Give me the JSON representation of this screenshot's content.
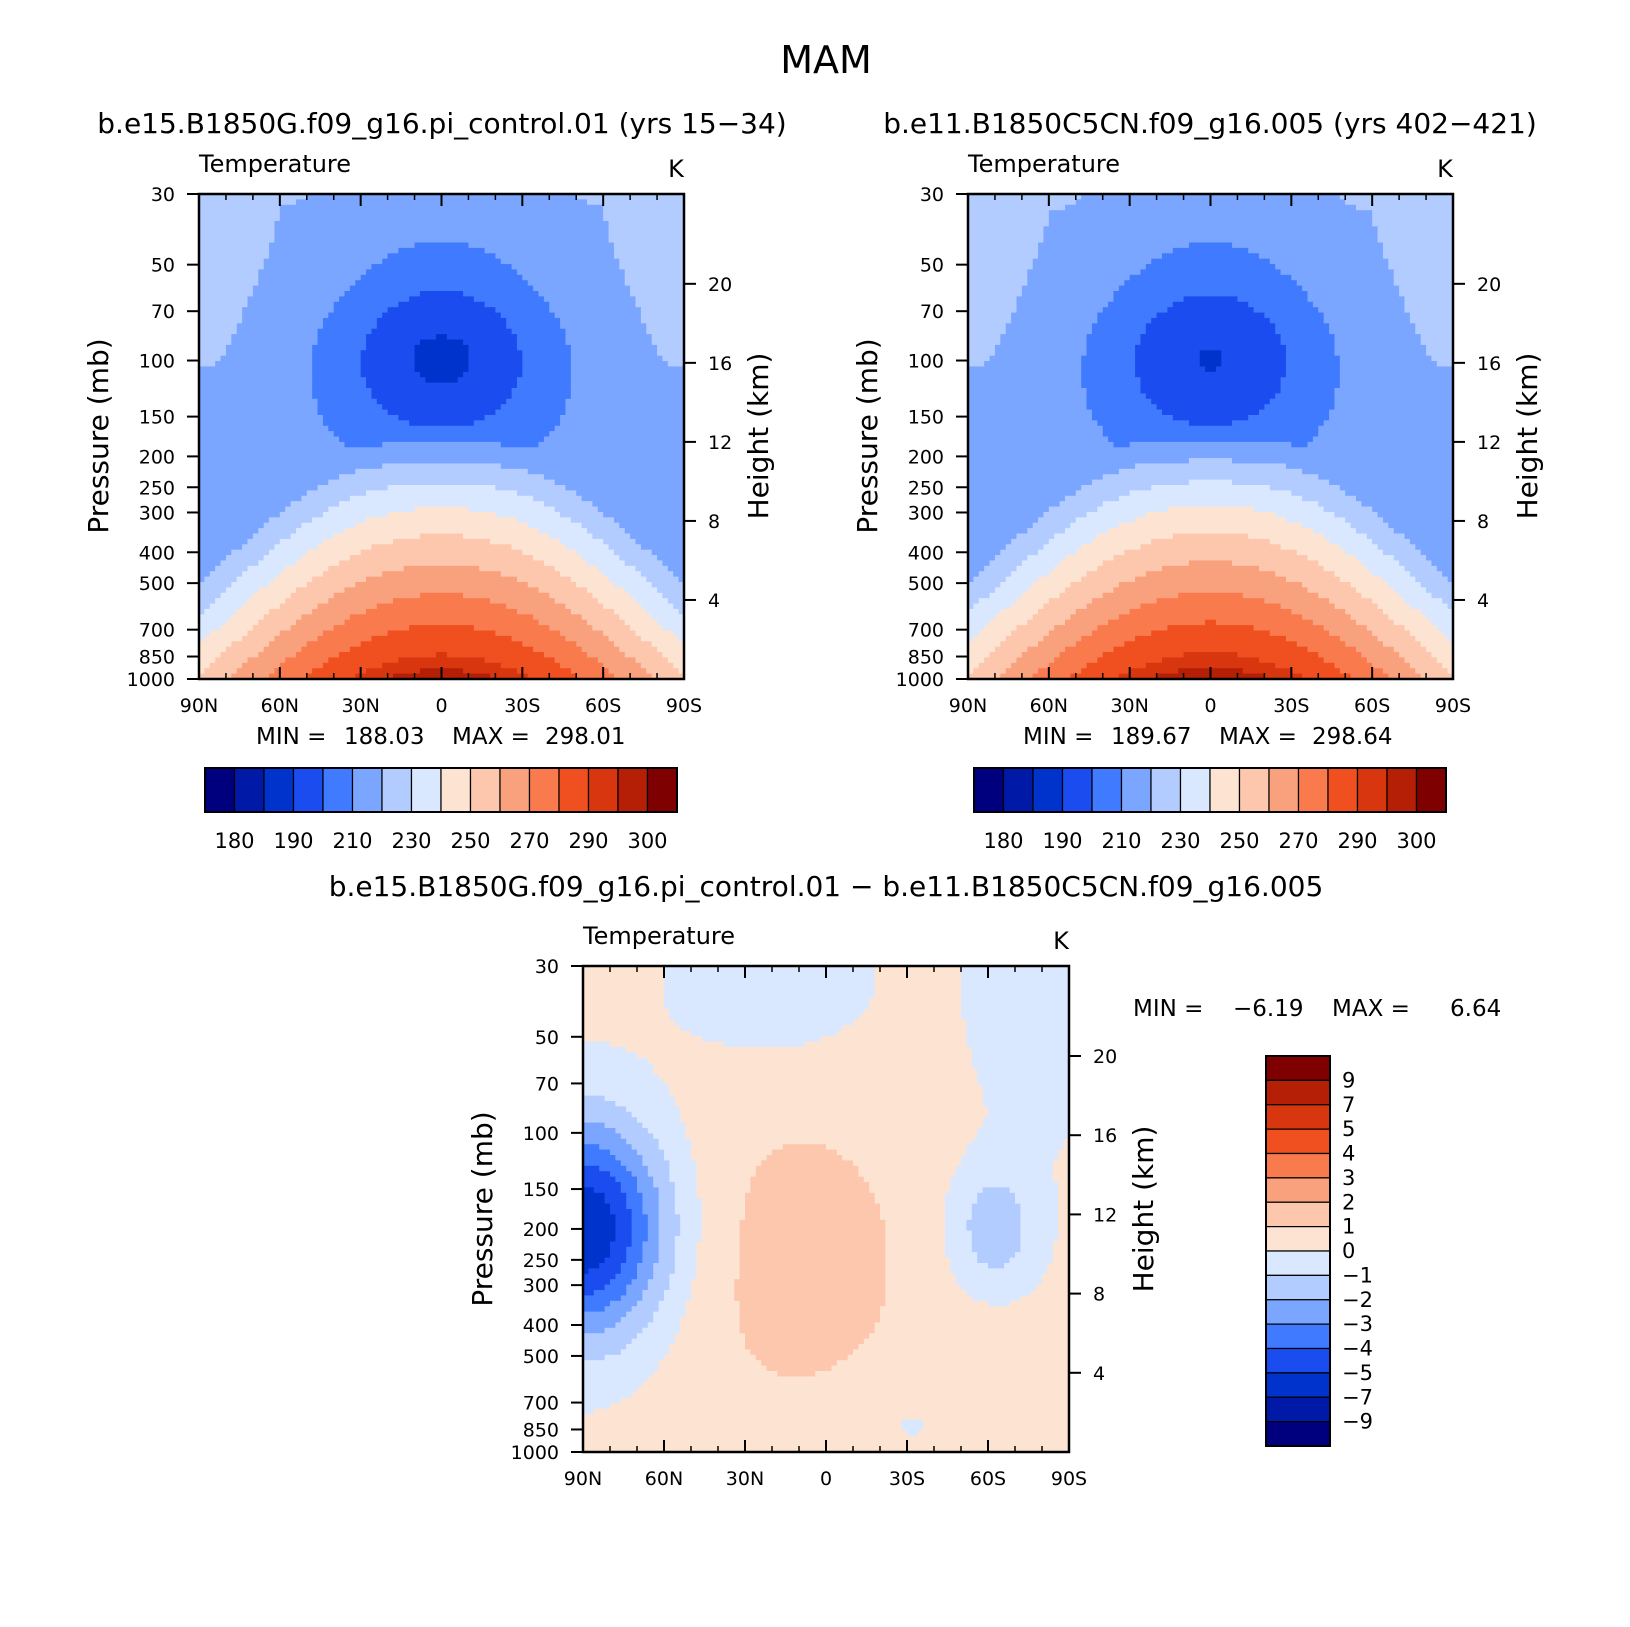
{
  "figure": {
    "title": "MAM",
    "top_left_title": "b.e15.B1850G.f09_g16.pi_control.01 (yrs 15−34)",
    "top_right_title": "b.e11.B1850C5CN.f09_g16.005 (yrs 402−421)",
    "diff_title": "b.e15.B1850G.f09_g16.pi_control.01 − b.e11.B1850C5CN.f09_g16.005"
  },
  "chart_data": [
    {
      "type": "contour",
      "panel": "top-left",
      "field": "Temperature",
      "units": "K",
      "xlabel": "",
      "ylabel": "Pressure (mb)",
      "y2label": "Height (km)",
      "x_ticks": [
        "90N",
        "60N",
        "30N",
        "0",
        "30S",
        "60S",
        "90S"
      ],
      "x_range": [
        90,
        -90
      ],
      "y_ticks": [
        30,
        50,
        70,
        100,
        150,
        200,
        250,
        300,
        400,
        500,
        700,
        850,
        1000
      ],
      "y_range_mb": [
        30,
        1000
      ],
      "y_scale": "log",
      "height_ticks_km": [
        4,
        8,
        12,
        16,
        20
      ],
      "min_label": "MIN =",
      "min": "188.03",
      "max_label": "MAX =",
      "max": "298.01",
      "levels": [
        180,
        185,
        190,
        200,
        210,
        220,
        230,
        240,
        250,
        260,
        270,
        280,
        290,
        295,
        300
      ],
      "colorbar_labels": [
        "180",
        "190",
        "210",
        "230",
        "250",
        "270",
        "290",
        "300"
      ],
      "tropopause_core": {
        "lat": 0,
        "p_mb": 100,
        "value": 188.03
      },
      "surface_max": {
        "lat": 0,
        "p_mb": 1000,
        "value": 298.01
      }
    },
    {
      "type": "contour",
      "panel": "top-right",
      "field": "Temperature",
      "units": "K",
      "xlabel": "",
      "ylabel": "Pressure (mb)",
      "y2label": "Height (km)",
      "x_ticks": [
        "90N",
        "60N",
        "30N",
        "0",
        "30S",
        "60S",
        "90S"
      ],
      "x_range": [
        90,
        -90
      ],
      "y_ticks": [
        30,
        50,
        70,
        100,
        150,
        200,
        250,
        300,
        400,
        500,
        700,
        850,
        1000
      ],
      "y_range_mb": [
        30,
        1000
      ],
      "y_scale": "log",
      "height_ticks_km": [
        4,
        8,
        12,
        16,
        20
      ],
      "min_label": "MIN =",
      "min": "189.67",
      "max_label": "MAX =",
      "max": "298.64",
      "levels": [
        180,
        185,
        190,
        200,
        210,
        220,
        230,
        240,
        250,
        260,
        270,
        280,
        290,
        295,
        300
      ],
      "colorbar_labels": [
        "180",
        "190",
        "210",
        "230",
        "250",
        "270",
        "290",
        "300"
      ],
      "tropopause_core": {
        "lat": 0,
        "p_mb": 100,
        "value": 189.67
      },
      "surface_max": {
        "lat": 0,
        "p_mb": 1000,
        "value": 298.64
      }
    },
    {
      "type": "contour",
      "panel": "difference",
      "field": "Temperature",
      "units": "K",
      "xlabel": "",
      "ylabel": "Pressure (mb)",
      "y2label": "Height (km)",
      "x_ticks": [
        "90N",
        "60N",
        "30N",
        "0",
        "30S",
        "60S",
        "90S"
      ],
      "x_range": [
        90,
        -90
      ],
      "y_ticks": [
        30,
        50,
        70,
        100,
        150,
        200,
        250,
        300,
        400,
        500,
        700,
        850,
        1000
      ],
      "y_range_mb": [
        30,
        1000
      ],
      "y_scale": "log",
      "height_ticks_km": [
        4,
        8,
        12,
        16,
        20
      ],
      "min_label": "MIN =",
      "min": "−6.19",
      "max_label": "MAX =",
      "max": "6.64",
      "levels": [
        -9,
        -7,
        -5,
        -4,
        -3,
        -2,
        -1,
        0,
        1,
        2,
        3,
        4,
        5,
        7,
        9
      ],
      "colorbar_labels": [
        "9",
        "7",
        "5",
        "4",
        "3",
        "2",
        "1",
        "0",
        "−1",
        "−2",
        "−3",
        "−4",
        "−5",
        "−7",
        "−9"
      ]
    }
  ],
  "palette": {
    "absolute": [
      "#00007f",
      "#0019a6",
      "#0033cc",
      "#1b4cef",
      "#3f7aff",
      "#7aa6ff",
      "#b3ccff",
      "#d9e8ff",
      "#fde4d2",
      "#fcc7ad",
      "#f9a07c",
      "#f97a4d",
      "#f04f1f",
      "#d8360f",
      "#b51f06",
      "#7f0000"
    ],
    "difference": [
      "#7f0000",
      "#b51f06",
      "#d8360f",
      "#f04f1f",
      "#f97a4d",
      "#f9a07c",
      "#fcc7ad",
      "#fde4d2",
      "#d9e8ff",
      "#b3ccff",
      "#7aa6ff",
      "#3f7aff",
      "#1b4cef",
      "#0033cc",
      "#0019a6",
      "#00007f"
    ]
  }
}
